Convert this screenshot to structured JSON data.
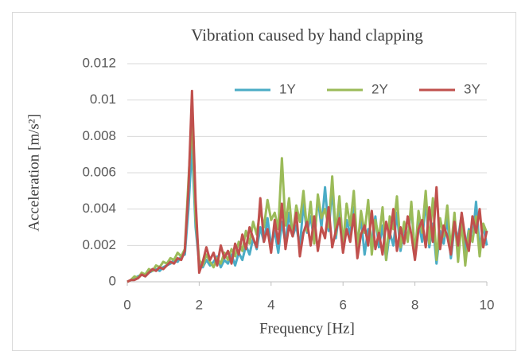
{
  "chart_data": {
    "type": "line",
    "title": "Vibration caused by hand clapping",
    "x_label": "Frequency [Hz]",
    "y_label": "Acceleration [m/s²]",
    "xlim": [
      0,
      10
    ],
    "xticks": [
      0,
      2,
      4,
      6,
      8,
      10
    ],
    "ylim": [
      0,
      0.012
    ],
    "yticks": [
      0,
      0.002,
      0.004,
      0.006,
      0.008,
      0.01,
      0.012
    ],
    "grid": true,
    "legend": "top-right",
    "x": [
      0,
      0.1,
      0.2,
      0.3,
      0.4,
      0.5,
      0.6,
      0.7,
      0.8,
      0.9,
      1,
      1.1,
      1.2,
      1.3,
      1.4,
      1.5,
      1.6,
      1.7,
      1.8,
      1.9,
      2,
      2.1,
      2.2,
      2.3,
      2.4,
      2.5,
      2.6,
      2.7,
      2.8,
      2.9,
      3,
      3.1,
      3.2,
      3.3,
      3.4,
      3.5,
      3.6,
      3.7,
      3.8,
      3.9,
      4,
      4.1,
      4.2,
      4.3,
      4.4,
      4.5,
      4.6,
      4.7,
      4.8,
      4.9,
      5,
      5.1,
      5.2,
      5.3,
      5.4,
      5.5,
      5.6,
      5.7,
      5.8,
      5.9,
      6,
      6.1,
      6.2,
      6.3,
      6.4,
      6.5,
      6.6,
      6.7,
      6.8,
      6.9,
      7,
      7.1,
      7.2,
      7.3,
      7.4,
      7.5,
      7.6,
      7.7,
      7.8,
      7.9,
      8,
      8.1,
      8.2,
      8.3,
      8.4,
      8.5,
      8.6,
      8.7,
      8.8,
      8.9,
      9,
      9.1,
      9.2,
      9.3,
      9.4,
      9.5,
      9.6,
      9.7,
      9.8,
      9.9,
      10
    ],
    "series": [
      {
        "name": "1Y",
        "color": "#4bacc6",
        "values": [
          0,
          0.0001,
          0.0002,
          0.0003,
          0.0004,
          0.0003,
          0.0005,
          0.0006,
          0.0007,
          0.0006,
          0.0008,
          0.0009,
          0.001,
          0.0012,
          0.0011,
          0.0014,
          0.0015,
          0.004,
          0.0075,
          0.003,
          0.001,
          0.0008,
          0.0012,
          0.0009,
          0.0011,
          0.0014,
          0.0008,
          0.0012,
          0.001,
          0.0015,
          0.0009,
          0.0016,
          0.0012,
          0.002,
          0.0015,
          0.0024,
          0.0018,
          0.003,
          0.0022,
          0.0035,
          0.002,
          0.0028,
          0.0016,
          0.0033,
          0.0021,
          0.0038,
          0.0025,
          0.0031,
          0.0019,
          0.0043,
          0.0027,
          0.0036,
          0.0022,
          0.0046,
          0.003,
          0.0052,
          0.0028,
          0.0051,
          0.0024,
          0.0039,
          0.0018,
          0.0034,
          0.0026,
          0.0041,
          0.0021,
          0.0035,
          0.0015,
          0.0029,
          0.0022,
          0.0036,
          0.0019,
          0.0031,
          0.0012,
          0.0027,
          0.002,
          0.0038,
          0.0017,
          0.003,
          0.0024,
          0.0041,
          0.0016,
          0.0034,
          0.0022,
          0.0045,
          0.0019,
          0.0032,
          0.001,
          0.0028,
          0.0021,
          0.0035,
          0.0013,
          0.003,
          0.0024,
          0.0037,
          0.0016,
          0.0029,
          0.0022,
          0.0044,
          0.0018,
          0.0031,
          0.002
        ]
      },
      {
        "name": "2Y",
        "color": "#9bbb59",
        "values": [
          0,
          0.0001,
          0.0003,
          0.0002,
          0.0005,
          0.0004,
          0.0007,
          0.0006,
          0.0009,
          0.0008,
          0.0011,
          0.001,
          0.0013,
          0.0012,
          0.0016,
          0.0014,
          0.0018,
          0.0055,
          0.009,
          0.0035,
          0.0012,
          0.0009,
          0.0015,
          0.0011,
          0.0008,
          0.0013,
          0.001,
          0.0016,
          0.0012,
          0.0018,
          0.0014,
          0.0022,
          0.0017,
          0.0028,
          0.0021,
          0.0033,
          0.0026,
          0.004,
          0.003,
          0.0045,
          0.0034,
          0.0038,
          0.0029,
          0.0068,
          0.0031,
          0.0046,
          0.0025,
          0.0042,
          0.0033,
          0.005,
          0.0028,
          0.0044,
          0.0021,
          0.0048,
          0.0035,
          0.004,
          0.003,
          0.0058,
          0.0026,
          0.0047,
          0.002,
          0.0043,
          0.0031,
          0.005,
          0.0018,
          0.0039,
          0.0027,
          0.0045,
          0.0015,
          0.0034,
          0.0024,
          0.0041,
          0.0012,
          0.0036,
          0.0029,
          0.0047,
          0.0019,
          0.0033,
          0.0022,
          0.0044,
          0.0014,
          0.0039,
          0.0027,
          0.005,
          0.0021,
          0.0046,
          0.0012,
          0.0035,
          0.0025,
          0.0042,
          0.0018,
          0.0038,
          0.0011,
          0.0033,
          0.0009,
          0.0028,
          0.0022,
          0.0036,
          0.0014,
          0.0032,
          0.0027
        ]
      },
      {
        "name": "3Y",
        "color": "#c0504d",
        "values": [
          0,
          0.0001,
          0.0001,
          0.0002,
          0.0004,
          0.0003,
          0.0005,
          0.0007,
          0.0006,
          0.0008,
          0.0007,
          0.0009,
          0.0011,
          0.001,
          0.0013,
          0.0012,
          0.0017,
          0.005,
          0.0105,
          0.0045,
          0.0005,
          0.0011,
          0.0019,
          0.0012,
          0.0016,
          0.0009,
          0.002,
          0.0013,
          0.0017,
          0.001,
          0.0021,
          0.0015,
          0.0026,
          0.0018,
          0.003,
          0.0024,
          0.0019,
          0.0046,
          0.0022,
          0.0029,
          0.0016,
          0.0034,
          0.0021,
          0.0043,
          0.0018,
          0.0031,
          0.0025,
          0.0038,
          0.0014,
          0.0027,
          0.0033,
          0.002,
          0.0036,
          0.0017,
          0.003,
          0.0024,
          0.0041,
          0.0019,
          0.0028,
          0.0035,
          0.0016,
          0.0029,
          0.0022,
          0.0037,
          0.0013,
          0.0026,
          0.0031,
          0.002,
          0.0039,
          0.0018,
          0.0027,
          0.0015,
          0.0033,
          0.0024,
          0.004,
          0.0017,
          0.003,
          0.0021,
          0.0036,
          0.0026,
          0.0012,
          0.0029,
          0.0034,
          0.0019,
          0.0041,
          0.0022,
          0.0052,
          0.0018,
          0.0031,
          0.0025,
          0.0015,
          0.0033,
          0.002,
          0.0038,
          0.0024,
          0.0017,
          0.0036,
          0.0027,
          0.004,
          0.0019,
          0.0028
        ]
      }
    ]
  }
}
